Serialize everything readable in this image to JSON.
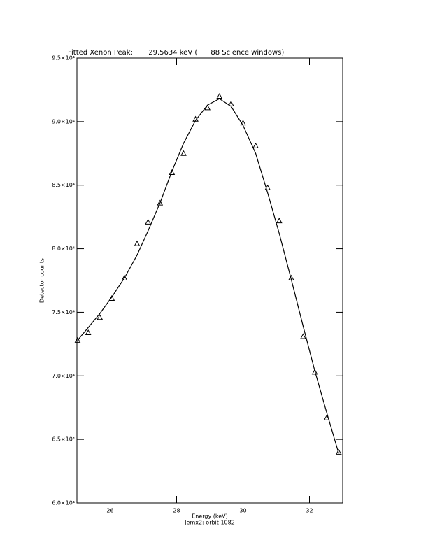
{
  "chart_data": {
    "type": "scatter",
    "title": "Fitted Xenon Peak:       29.5634 keV (      88 Science windows)",
    "x_label": "Energy (keV)",
    "subtitle": "Jemx2: orbit 1082",
    "y_label": "Detector counts",
    "xlim": [
      25,
      33
    ],
    "xticks": [
      26,
      28,
      30,
      32
    ],
    "ylim": [
      60000,
      95000
    ],
    "yticks": [
      {
        "value": 60000,
        "label": "6.0×10⁴"
      },
      {
        "value": 65000,
        "label": "6.5×10⁴"
      },
      {
        "value": 70000,
        "label": "7.0×10⁴"
      },
      {
        "value": 75000,
        "label": "7.5×10⁴"
      },
      {
        "value": 80000,
        "label": "8.0×10⁴"
      },
      {
        "value": 85000,
        "label": "8.5×10⁴"
      },
      {
        "value": 90000,
        "label": "9.0×10⁴"
      },
      {
        "value": 95000,
        "label": "9.5×10⁴"
      }
    ],
    "x": [
      25.02,
      25.34,
      25.69,
      26.05,
      26.43,
      26.81,
      27.14,
      27.5,
      27.86,
      28.21,
      28.57,
      28.93,
      29.29,
      29.64,
      30.0,
      30.38,
      30.74,
      31.09,
      31.45,
      31.81,
      32.16,
      32.52,
      32.88
    ],
    "series": [
      {
        "mode": "markers",
        "color": "#000000",
        "values": [
          72800,
          73400,
          74600,
          76100,
          77700,
          80400,
          82100,
          83600,
          86000,
          87500,
          90200,
          91100,
          92000,
          91400,
          89900,
          88100,
          84800,
          82200,
          77700,
          73100,
          70300,
          66700,
          64000
        ]
      },
      {
        "mode": "line",
        "color": "#000000",
        "values": [
          72800,
          73800,
          74900,
          76200,
          77700,
          79500,
          81400,
          83600,
          86100,
          88300,
          90100,
          91300,
          91800,
          91200,
          89700,
          87500,
          84400,
          81200,
          77600,
          73900,
          70400,
          67100,
          63900
        ]
      }
    ]
  }
}
